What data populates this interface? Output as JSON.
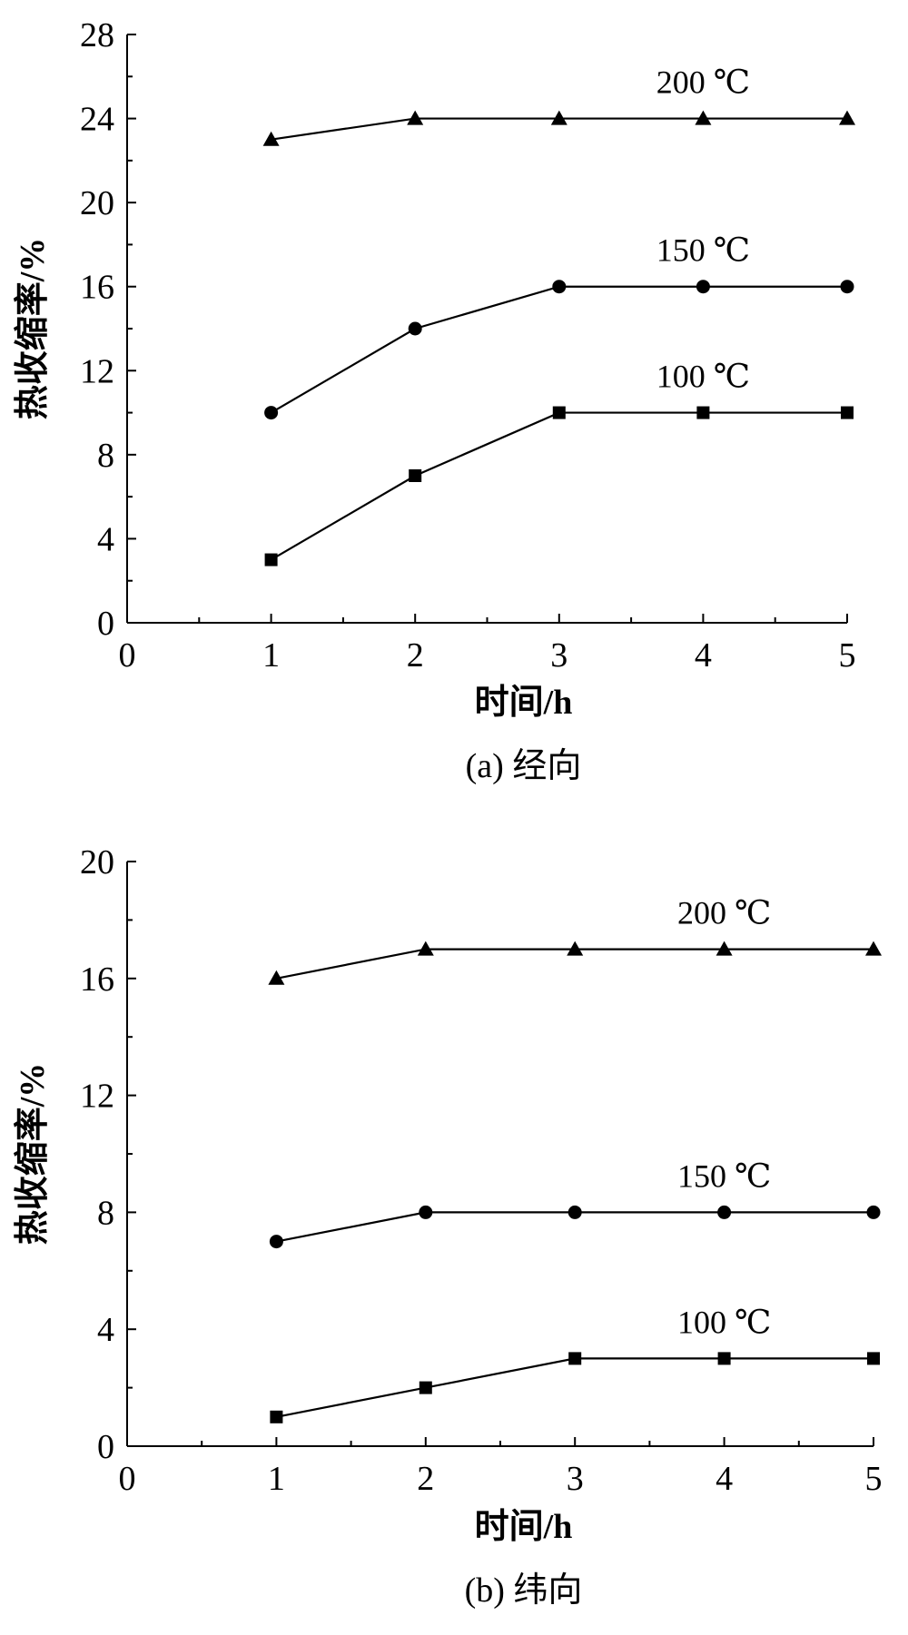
{
  "chart_data": [
    {
      "type": "line",
      "caption": "(a) 经向",
      "xlabel": "时间/h",
      "ylabel": "热收缩率/%",
      "xlim": [
        0,
        5
      ],
      "ylim": [
        0,
        28
      ],
      "xticks": [
        "0",
        "1",
        "2",
        "3",
        "4",
        "5"
      ],
      "yticks": [
        "0",
        "4",
        "8",
        "12",
        "16",
        "20",
        "24",
        "28"
      ],
      "grid": false,
      "x": [
        1,
        2,
        3,
        4,
        5
      ],
      "series": [
        {
          "name": "100 ℃",
          "marker": "square",
          "values": [
            3,
            7,
            10,
            10,
            10
          ]
        },
        {
          "name": "150 ℃",
          "marker": "circle",
          "values": [
            10,
            14,
            16,
            16,
            16
          ]
        },
        {
          "name": "200 ℃",
          "marker": "triangle",
          "values": [
            23,
            24,
            24,
            24,
            24
          ]
        }
      ]
    },
    {
      "type": "line",
      "caption": "(b) 纬向",
      "xlabel": "时间/h",
      "ylabel": "热收缩率/%",
      "xlim": [
        0,
        5
      ],
      "ylim": [
        0,
        20
      ],
      "xticks": [
        "0",
        "1",
        "2",
        "3",
        "4",
        "5"
      ],
      "yticks": [
        "0",
        "4",
        "8",
        "12",
        "16",
        "20"
      ],
      "grid": false,
      "x": [
        1,
        2,
        3,
        4,
        5
      ],
      "series": [
        {
          "name": "100 ℃",
          "marker": "square",
          "values": [
            1,
            2,
            3,
            3,
            3
          ]
        },
        {
          "name": "150 ℃",
          "marker": "circle",
          "values": [
            7,
            8,
            8,
            8,
            8
          ]
        },
        {
          "name": "200 ℃",
          "marker": "triangle",
          "values": [
            16,
            17,
            17,
            17,
            17
          ]
        }
      ]
    }
  ]
}
